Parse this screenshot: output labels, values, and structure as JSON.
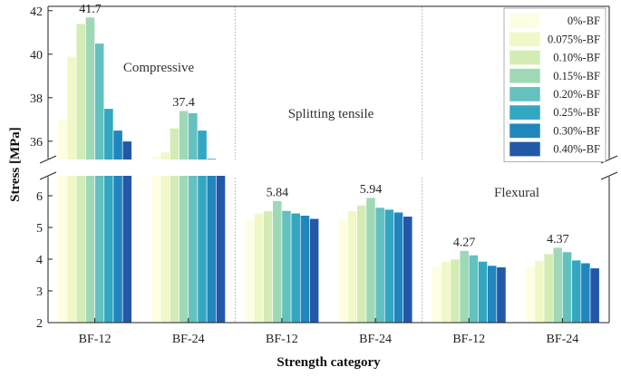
{
  "chart_data": {
    "type": "bar",
    "xlabel": "Strength category",
    "ylabel": "Stress [MPa]",
    "x_categories": [
      "BF-12",
      "BF-24",
      "BF-12",
      "BF-24",
      "BF-12",
      "BF-24"
    ],
    "axis_break": {
      "lower_range": [
        2,
        6.6
      ],
      "upper_range": [
        35.2,
        42.2
      ]
    },
    "yticks_lower": [
      "2",
      "3",
      "4",
      "5",
      "6"
    ],
    "yticks_upper": [
      "36",
      "38",
      "40",
      "42"
    ],
    "groups": [
      {
        "name": "Compressive",
        "categories": [
          "BF-12",
          "BF-24"
        ]
      },
      {
        "name": "Splitting tensile",
        "categories": [
          "BF-12",
          "BF-24"
        ]
      },
      {
        "name": "Flexural",
        "categories": [
          "BF-12",
          "BF-24"
        ]
      }
    ],
    "series": [
      {
        "name": "0%-BF",
        "color": "#fdfde2",
        "values": [
          37.0,
          35.3,
          5.23,
          5.23,
          3.77,
          3.77
        ]
      },
      {
        "name": "0.075%-BF",
        "color": "#eff8c6",
        "values": [
          39.9,
          35.5,
          5.45,
          5.52,
          3.93,
          3.95
        ]
      },
      {
        "name": "0.10%-BF",
        "color": "#d3ecb5",
        "values": [
          41.4,
          36.6,
          5.52,
          5.7,
          4.0,
          4.17
        ]
      },
      {
        "name": "0.15%-BF",
        "color": "#9fd8b6",
        "values": [
          41.7,
          37.4,
          5.84,
          5.94,
          4.27,
          4.37
        ]
      },
      {
        "name": "0.20%-BF",
        "color": "#63c1bf",
        "values": [
          40.5,
          37.3,
          5.53,
          5.63,
          4.13,
          4.23
        ]
      },
      {
        "name": "0.25%-BF",
        "color": "#33a6c2",
        "values": [
          37.5,
          36.5,
          5.45,
          5.57,
          3.93,
          3.97
        ]
      },
      {
        "name": "0.30%-BF",
        "color": "#2186bd",
        "values": [
          36.5,
          35.2,
          5.38,
          5.48,
          3.8,
          3.88
        ]
      },
      {
        "name": "0.40%-BF",
        "color": "#2258a8",
        "values": [
          36.0,
          34.8,
          5.28,
          5.35,
          3.75,
          3.72
        ]
      }
    ],
    "annotations": [
      {
        "text": "41.7",
        "category_index": 0,
        "series_index": 3
      },
      {
        "text": "37.4",
        "category_index": 1,
        "series_index": 3
      },
      {
        "text": "5.84",
        "category_index": 2,
        "series_index": 3
      },
      {
        "text": "5.94",
        "category_index": 3,
        "series_index": 3
      },
      {
        "text": "4.27",
        "category_index": 4,
        "series_index": 3
      },
      {
        "text": "4.37",
        "category_index": 5,
        "series_index": 3
      }
    ],
    "legend_position": "top-right"
  }
}
